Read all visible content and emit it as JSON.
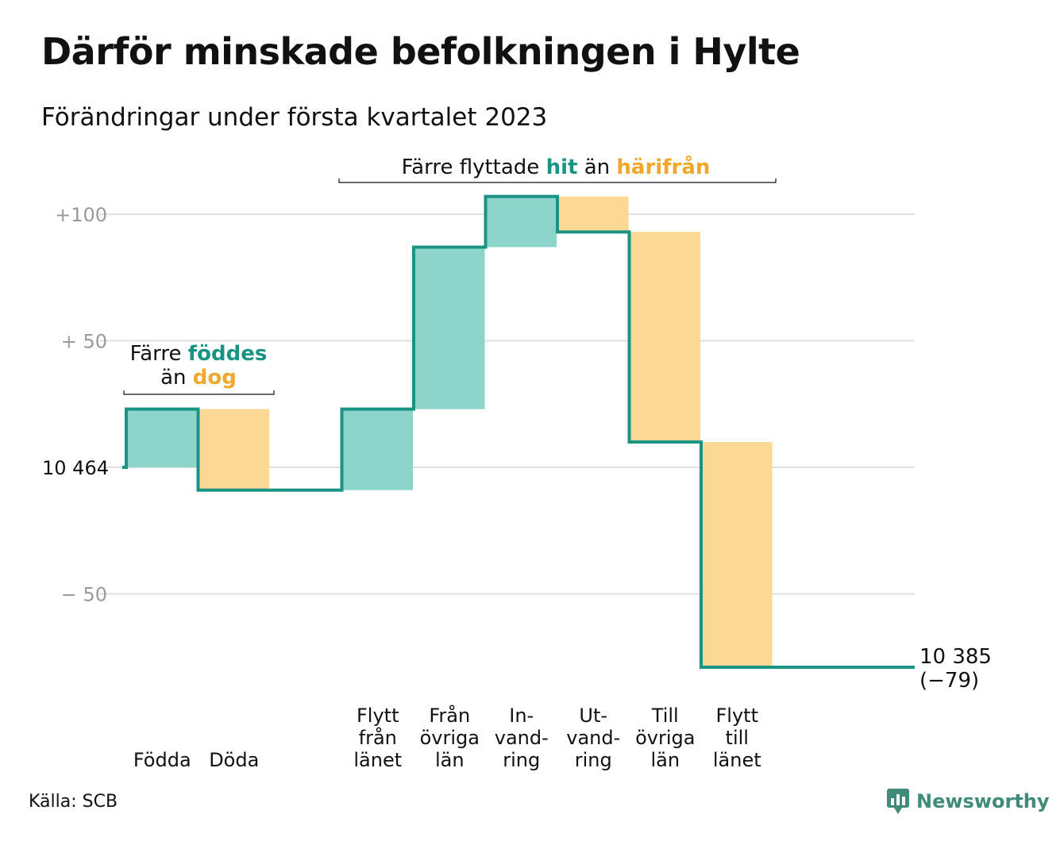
{
  "title": "Därför minskade befolkningen i Hylte",
  "subtitle": "Förändringar under första kvartalet 2023",
  "source": "Källa: SCB",
  "brand": "Newsworthy",
  "colors": {
    "inflow": "#8dd5cb",
    "outflow": "#fbd894",
    "line": "#1a9384",
    "grid": "#e0e0e0",
    "tick": "#9a9a9a",
    "inflow_text": "#1a9384",
    "outflow_text": "#f1a72a"
  },
  "annotations": {
    "births": {
      "prefix": "Färre",
      "highlight_in": "föddes",
      "mid": "än",
      "highlight_out": "dog"
    },
    "moves": {
      "prefix": "Färre flyttade",
      "highlight_in": "hit",
      "mid": "än",
      "highlight_out": "härifrån"
    }
  },
  "chart_data": {
    "type": "waterfall",
    "title": "Därför minskade befolkningen i Hylte",
    "subtitle": "Förändringar under första kvartalet 2023",
    "start_value": 10464,
    "start_label": "10 464",
    "end_value": 10385,
    "end_label": "10 385",
    "end_change_label": "(−79)",
    "ylim": [
      -79,
      107
    ],
    "y_ticks": [
      {
        "value": 100,
        "label": "+100"
      },
      {
        "value": 50,
        "label": "+ 50"
      },
      {
        "value": 0,
        "label": "10 464"
      },
      {
        "value": -50,
        "label": "− 50"
      }
    ],
    "categories": [
      {
        "lines": [
          "Födda"
        ],
        "change": 23,
        "kind": "inflow"
      },
      {
        "lines": [
          "Döda"
        ],
        "change": -32,
        "kind": "outflow"
      },
      {
        "lines": [],
        "change": 0,
        "kind": "gap"
      },
      {
        "lines": [
          "Flytt",
          "från",
          "länet"
        ],
        "change": 32,
        "kind": "inflow"
      },
      {
        "lines": [
          "Från",
          "övriga",
          "län"
        ],
        "change": 64,
        "kind": "inflow"
      },
      {
        "lines": [
          "In-",
          "vand-",
          "ring"
        ],
        "change": 20,
        "kind": "inflow"
      },
      {
        "lines": [
          "Ut-",
          "vand-",
          "ring"
        ],
        "change": -14,
        "kind": "outflow"
      },
      {
        "lines": [
          "Till",
          "övriga",
          "län"
        ],
        "change": -83,
        "kind": "outflow"
      },
      {
        "lines": [
          "Flytt",
          "till",
          "länet"
        ],
        "change": -89,
        "kind": "outflow"
      }
    ],
    "grid": true
  }
}
